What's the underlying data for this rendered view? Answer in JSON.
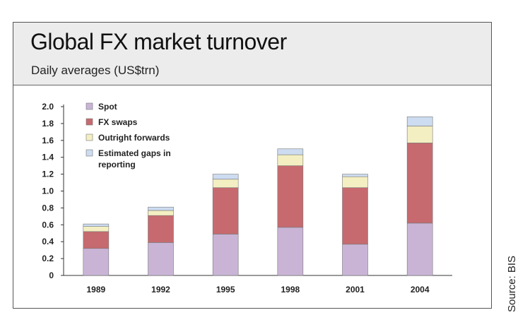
{
  "header": {
    "title": "Global FX market turnover",
    "subtitle": "Daily averages (US$trn)"
  },
  "source": "Source: BIS",
  "chart_data": {
    "type": "bar",
    "stacked": true,
    "title": "Global FX market turnover",
    "subtitle": "Daily averages (US$trn)",
    "xlabel": "",
    "ylabel": "",
    "categories": [
      "1989",
      "1992",
      "1995",
      "1998",
      "2001",
      "2004"
    ],
    "ylim": [
      0,
      2.0
    ],
    "yticks": [
      "2.0",
      "1.8",
      "1.6",
      "1.4",
      "1.2",
      "1.0",
      "0.8",
      "0.6",
      "0.4",
      "0.2",
      "0"
    ],
    "ytick_values": [
      2.0,
      1.8,
      1.6,
      1.4,
      1.2,
      1.0,
      0.8,
      0.6,
      0.4,
      0.2,
      0
    ],
    "legend_position": "top-left",
    "grid": false,
    "series": [
      {
        "name": "Spot",
        "color": "#c9b4d6",
        "values": [
          0.32,
          0.39,
          0.49,
          0.57,
          0.37,
          0.62
        ]
      },
      {
        "name": "FX swaps",
        "color": "#c66a6f",
        "values": [
          0.2,
          0.32,
          0.55,
          0.73,
          0.67,
          0.95
        ]
      },
      {
        "name": "Outright forwards",
        "color": "#f4efc2",
        "values": [
          0.06,
          0.06,
          0.1,
          0.13,
          0.13,
          0.2
        ]
      },
      {
        "name": "Estimated gaps in reporting",
        "color": "#cddcf0",
        "values": [
          0.03,
          0.04,
          0.06,
          0.07,
          0.03,
          0.11
        ]
      }
    ],
    "legend_lines": [
      [
        "Spot"
      ],
      [
        "FX swaps"
      ],
      [
        "Outright forwards"
      ],
      [
        "Estimated gaps in",
        "reporting"
      ]
    ]
  }
}
